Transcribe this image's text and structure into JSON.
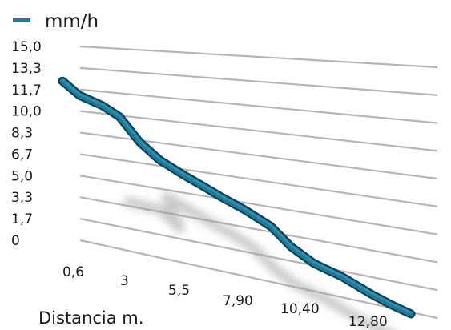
{
  "chart_data": {
    "type": "line",
    "title": "",
    "xlabel": "Distancia m.",
    "ylabel": "",
    "y_ticks": [
      "15,0",
      "13,3",
      "11,7",
      "10,0",
      "8,3",
      "6,7",
      "5,0",
      "3,3",
      "1,7",
      "0"
    ],
    "x_ticks": [
      "0,6",
      "3",
      "5,5",
      "7,90",
      "10,40",
      "12,80"
    ],
    "ylim": [
      0,
      15
    ],
    "grid": true,
    "legend": {
      "position": "top-left",
      "entries": [
        "mm/h"
      ]
    },
    "series": [
      {
        "name": "mm/h",
        "color": "#1f7a98",
        "x": [
          0.6,
          1.2,
          2.0,
          2.6,
          3.3,
          4.0,
          4.8,
          5.5,
          6.2,
          7.0,
          7.9,
          8.6,
          9.4,
          10.4,
          11.4,
          12.1,
          12.8
        ],
        "y": [
          12.2,
          11.2,
          10.6,
          9.9,
          8.2,
          7.1,
          6.3,
          5.7,
          5.1,
          4.5,
          3.7,
          2.6,
          1.8,
          1.3,
          0.6,
          0.2,
          -0.1
        ]
      }
    ],
    "colors": {
      "line": "#1f7a98",
      "line_edge": "#0c3c52",
      "grid": "#b5b5b5",
      "shadow": "#9a9a9a"
    }
  }
}
